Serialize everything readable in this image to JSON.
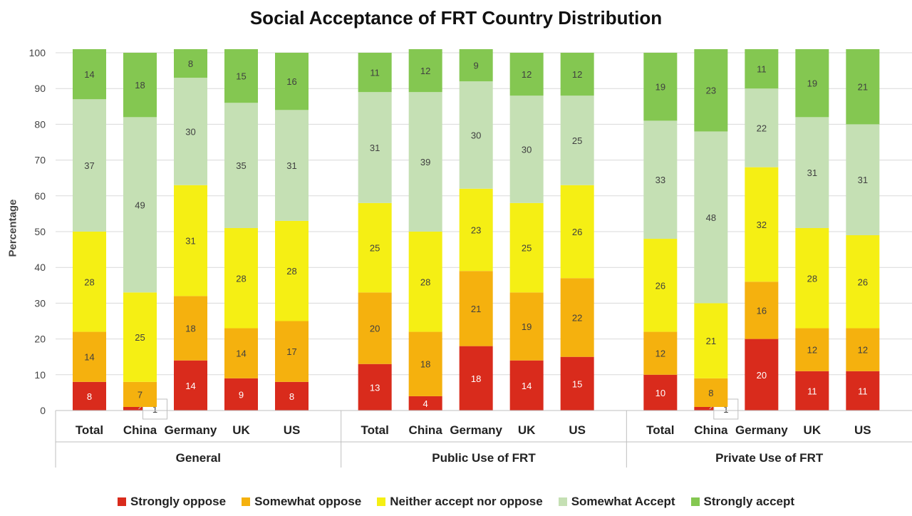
{
  "chart_data": {
    "type": "bar",
    "stacked": true,
    "title": "Social Acceptance of FRT Country Distribution",
    "ylabel": "Percentage",
    "ylim": [
      0,
      100
    ],
    "yticks": [
      0,
      10,
      20,
      30,
      40,
      50,
      60,
      70,
      80,
      90,
      100
    ],
    "grid": true,
    "legend_position": "bottom",
    "groups": [
      {
        "name": "General",
        "categories": [
          "Total",
          "China",
          "Germany",
          "UK",
          "US"
        ],
        "series": [
          {
            "name": "Strongly oppose",
            "color": "#d92b1c",
            "values": [
              8,
              1,
              14,
              9,
              8
            ],
            "labels": [
              "8",
              "1",
              "14",
              "9",
              "8"
            ]
          },
          {
            "name": "Somewhat oppose",
            "color": "#f5b10e",
            "values": [
              14,
              7,
              18,
              14,
              17
            ],
            "labels": [
              "14",
              "7",
              "18",
              "14",
              "17"
            ]
          },
          {
            "name": "Neither accept nor oppose",
            "color": "#f5ef14",
            "values": [
              28,
              25,
              31,
              28,
              28
            ],
            "labels": [
              "28",
              "25",
              "31",
              "28",
              "28"
            ]
          },
          {
            "name": "Somewhat Accept",
            "color": "#c5e0b4",
            "values": [
              37,
              49,
              30,
              35,
              31
            ],
            "labels": [
              "37",
              "49",
              "30",
              "35",
              "31"
            ]
          },
          {
            "name": "Strongly accept",
            "color": "#84c751",
            "values": [
              14,
              18,
              8,
              15,
              16
            ],
            "labels": [
              "14",
              "18",
              "8",
              "15",
              "16"
            ]
          }
        ]
      },
      {
        "name": "Public Use of FRT",
        "categories": [
          "Total",
          "China",
          "Germany",
          "UK",
          "US"
        ],
        "series": [
          {
            "name": "Strongly oppose",
            "color": "#d92b1c",
            "values": [
              13,
              4,
              18,
              14,
              15
            ],
            "labels": [
              "13",
              "4",
              "18",
              "14",
              "15"
            ]
          },
          {
            "name": "Somewhat oppose",
            "color": "#f5b10e",
            "values": [
              20,
              18,
              21,
              19,
              22
            ],
            "labels": [
              "20",
              "18",
              "21",
              "19",
              "22"
            ]
          },
          {
            "name": "Neither accept nor oppose",
            "color": "#f5ef14",
            "values": [
              25,
              28,
              23,
              25,
              26
            ],
            "labels": [
              "25",
              "28",
              "23",
              "25",
              "26"
            ]
          },
          {
            "name": "Somewhat Accept",
            "color": "#c5e0b4",
            "values": [
              31,
              39,
              30,
              30,
              25
            ],
            "labels": [
              "31",
              "39",
              "30",
              "30",
              "25"
            ]
          },
          {
            "name": "Strongly accept",
            "color": "#84c751",
            "values": [
              11,
              12,
              9,
              12,
              12
            ],
            "labels": [
              "11",
              "12",
              "9",
              "12",
              "12"
            ]
          }
        ]
      },
      {
        "name": "Private Use of FRT",
        "categories": [
          "Total",
          "China",
          "Germany",
          "UK",
          "US"
        ],
        "series": [
          {
            "name": "Strongly oppose",
            "color": "#d92b1c",
            "values": [
              10,
              1,
              20,
              11,
              11
            ],
            "labels": [
              "10",
              "1",
              "20",
              "11",
              "11"
            ]
          },
          {
            "name": "Somewhat oppose",
            "color": "#f5b10e",
            "values": [
              12,
              8,
              16,
              12,
              12
            ],
            "labels": [
              "12",
              "8",
              "16",
              "12",
              "12"
            ]
          },
          {
            "name": "Neither accept nor oppose",
            "color": "#f5ef14",
            "values": [
              26,
              21,
              32,
              28,
              26
            ],
            "labels": [
              "26",
              "21",
              "32",
              "28",
              "26"
            ]
          },
          {
            "name": "Somewhat Accept",
            "color": "#c5e0b4",
            "values": [
              33,
              48,
              22,
              31,
              31
            ],
            "labels": [
              "33",
              "48",
              "22",
              "31",
              "31"
            ]
          },
          {
            "name": "Strongly accept",
            "color": "#84c751",
            "values": [
              19,
              23,
              11,
              19,
              21
            ],
            "labels": [
              "19",
              "23",
              "11",
              "19",
              "21"
            ]
          }
        ]
      }
    ],
    "legend": [
      "Strongly oppose",
      "Somewhat oppose",
      "Neither accept nor oppose",
      "Somewhat Accept",
      "Strongly accept"
    ]
  }
}
